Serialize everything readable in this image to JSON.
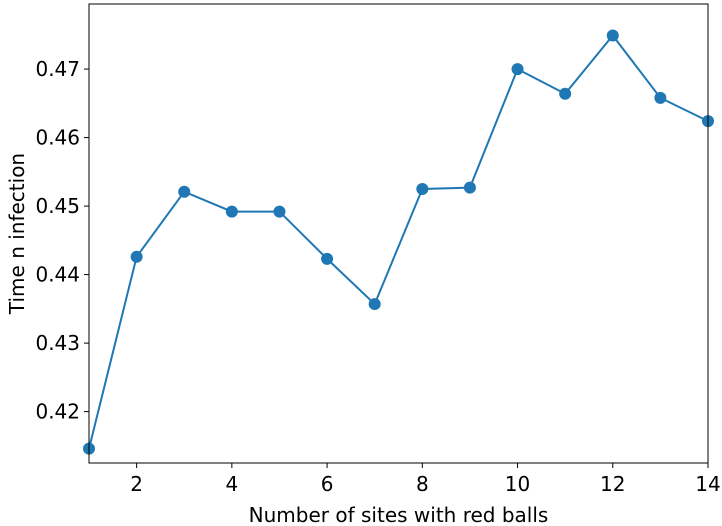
{
  "chart_data": {
    "type": "line",
    "title": "",
    "xlabel": "Number of sites with red balls",
    "ylabel": "Time n infection",
    "xlim": [
      1,
      14
    ],
    "ylim": [
      0.4125,
      0.4795
    ],
    "xticks": [
      2,
      4,
      6,
      8,
      10,
      12,
      14
    ],
    "xtick_labels": [
      "2",
      "4",
      "6",
      "8",
      "10",
      "12",
      "14"
    ],
    "yticks": [
      0.42,
      0.43,
      0.44,
      0.45,
      0.46,
      0.47
    ],
    "ytick_labels": [
      "0.42",
      "0.43",
      "0.44",
      "0.45",
      "0.46",
      "0.47"
    ],
    "grid": false,
    "legend": "none",
    "series": [
      {
        "color": "#1f77b4",
        "marker": "circle",
        "x": [
          1,
          2,
          3,
          4,
          5,
          6,
          7,
          8,
          9,
          10,
          11,
          12,
          13,
          14
        ],
        "y": [
          0.4146,
          0.4426,
          0.4521,
          0.4492,
          0.4492,
          0.4423,
          0.4357,
          0.4525,
          0.4527,
          0.47,
          0.4664,
          0.4749,
          0.4658,
          0.4624
        ]
      }
    ]
  }
}
